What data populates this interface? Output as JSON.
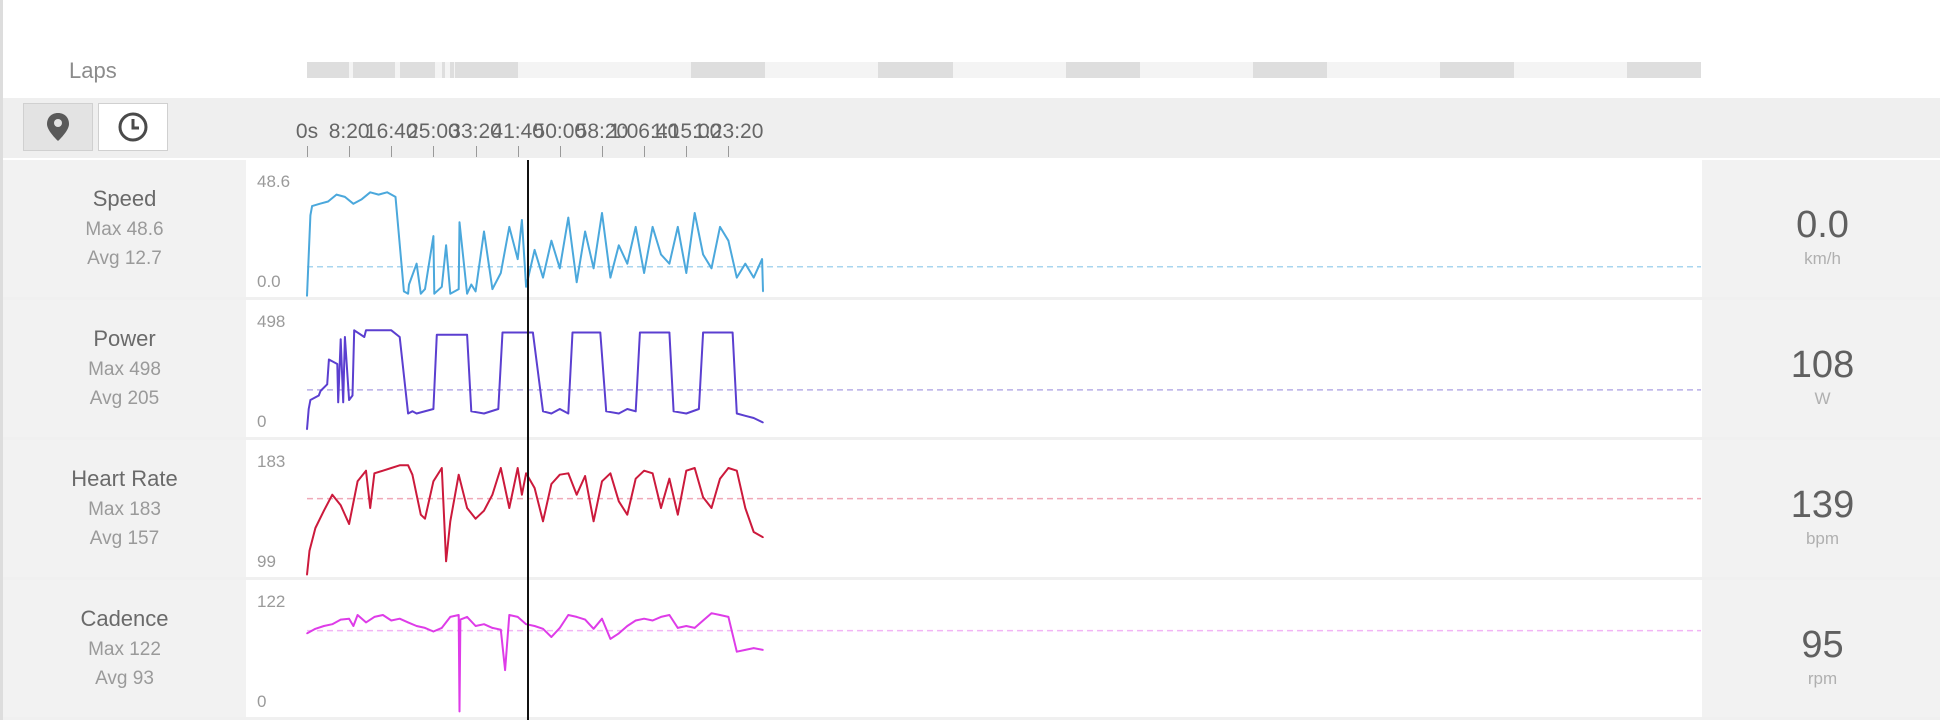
{
  "laps": {
    "label": "Laps",
    "segments": [
      [
        0,
        500
      ],
      [
        550,
        1050
      ],
      [
        1100,
        1520
      ],
      [
        1600,
        1640
      ],
      [
        1700,
        1740
      ],
      [
        1760,
        2500
      ],
      [
        4560,
        5440
      ],
      [
        6780,
        7660
      ],
      [
        9000,
        9880
      ],
      [
        11220,
        12100
      ],
      [
        13440,
        14320
      ],
      [
        15660,
        16540
      ]
    ]
  },
  "toolbar": {
    "buttons": [
      {
        "name": "map-pin",
        "active": false
      },
      {
        "name": "clock",
        "active": true
      }
    ]
  },
  "time_axis": {
    "max_seconds": 16540,
    "ticks": [
      {
        "label": "0s",
        "t": 0
      },
      {
        "label": "8:20",
        "t": 500
      },
      {
        "label": "16:40",
        "t": 1000
      },
      {
        "label": "25:00",
        "t": 1500
      },
      {
        "label": "33:20",
        "t": 2000
      },
      {
        "label": "41:40",
        "t": 2500
      },
      {
        "label": "50:00",
        "t": 3000
      },
      {
        "label": "58:20",
        "t": 3500
      },
      {
        "label": "1:06:40",
        "t": 4000
      },
      {
        "label": "1:15:00",
        "t": 4500
      },
      {
        "label": "1:23:20",
        "t": 5000
      }
    ],
    "cursor_seconds": 2610
  },
  "metrics": [
    {
      "key": "speed",
      "name": "Speed",
      "max_text": "Max 48.6",
      "avg_text": "Avg 12.7",
      "current": "0.0",
      "unit": "km/h",
      "ymax_label": "48.6",
      "ymin_label": "0.0",
      "ymin": 0,
      "ymax": 48.6,
      "avg": 12.7,
      "color": "#4ba8dc",
      "avg_color": "#a9d6ef"
    },
    {
      "key": "power",
      "name": "Power",
      "max_text": "Max 498",
      "avg_text": "Avg 205",
      "current": "108",
      "unit": "W",
      "ymax_label": "498",
      "ymin_label": "0",
      "ymin": 0,
      "ymax": 498,
      "avg": 205,
      "color": "#5b3fd0",
      "avg_color": "#b8aee6"
    },
    {
      "key": "hr",
      "name": "Heart Rate",
      "max_text": "Max 183",
      "avg_text": "Avg 157",
      "current": "139",
      "unit": "bpm",
      "ymax_label": "183",
      "ymin_label": "99",
      "ymin": 99,
      "ymax": 183,
      "avg": 157,
      "color": "#cc1a3c",
      "avg_color": "#efa9b8"
    },
    {
      "key": "cadence",
      "name": "Cadence",
      "max_text": "Max 122",
      "avg_text": "Avg 93",
      "current": "95",
      "unit": "rpm",
      "ymax_label": "122",
      "ymin_label": "0",
      "ymin": 0,
      "ymax": 122,
      "avg": 93,
      "color": "#de3ce8",
      "avg_color": "#f2b4f5"
    }
  ],
  "chart_data": [
    {
      "type": "line",
      "title": "Speed",
      "xlabel": "",
      "ylabel": "",
      "x_unit": "seconds",
      "ylim": [
        0,
        48.6
      ],
      "x": [
        0,
        40,
        60,
        150,
        250,
        350,
        450,
        550,
        650,
        750,
        850,
        950,
        1050,
        1150,
        1200,
        1210,
        1300,
        1350,
        1400,
        1500,
        1510,
        1600,
        1650,
        1700,
        1800,
        1810,
        1900,
        1950,
        2000,
        2100,
        2200,
        2300,
        2400,
        2500,
        2550,
        2600,
        2700,
        2800,
        2900,
        3000,
        3100,
        3200,
        3300,
        3400,
        3500,
        3600,
        3700,
        3800,
        3900,
        4000,
        4100,
        4200,
        4300,
        4400,
        4500,
        4600,
        4700,
        4800,
        4900,
        5000,
        5100,
        5200,
        5300,
        5400,
        5410
      ],
      "values": [
        0,
        35,
        39,
        40,
        41,
        44,
        43,
        40,
        42,
        45,
        44,
        45,
        43,
        2,
        1,
        5,
        14,
        1,
        3,
        26,
        1,
        4,
        22,
        1,
        3,
        32,
        1,
        5,
        2,
        28,
        3,
        10,
        30,
        16,
        33,
        4,
        20,
        8,
        24,
        12,
        34,
        6,
        28,
        12,
        36,
        8,
        22,
        14,
        30,
        10,
        30,
        18,
        14,
        30,
        10,
        36,
        18,
        12,
        30,
        24,
        8,
        14,
        8,
        16,
        2
      ]
    },
    {
      "type": "line",
      "title": "Power",
      "xlabel": "",
      "ylabel": "",
      "x_unit": "seconds",
      "ylim": [
        0,
        498
      ],
      "x": [
        0,
        20,
        40,
        140,
        160,
        240,
        260,
        360,
        370,
        400,
        430,
        450,
        500,
        540,
        560,
        680,
        700,
        1000,
        1100,
        1200,
        1250,
        1300,
        1500,
        1540,
        1900,
        1950,
        2100,
        2270,
        2320,
        2680,
        2800,
        2900,
        3000,
        3100,
        3150,
        3480,
        3550,
        3700,
        3800,
        3900,
        3950,
        4300,
        4350,
        4500,
        4650,
        4700,
        5050,
        5100,
        5200,
        5300,
        5410
      ],
      "values": [
        30,
        120,
        160,
        180,
        200,
        230,
        340,
        320,
        150,
        430,
        150,
        440,
        160,
        180,
        470,
        440,
        470,
        470,
        440,
        100,
        110,
        100,
        120,
        450,
        450,
        110,
        100,
        120,
        460,
        460,
        110,
        100,
        120,
        100,
        460,
        460,
        110,
        100,
        120,
        110,
        460,
        460,
        110,
        100,
        120,
        460,
        460,
        100,
        90,
        80,
        60
      ]
    },
    {
      "type": "line",
      "title": "Heart Rate",
      "xlabel": "",
      "ylabel": "",
      "x_unit": "seconds",
      "ylim": [
        99,
        183
      ],
      "x": [
        0,
        30,
        100,
        200,
        300,
        400,
        500,
        600,
        700,
        750,
        800,
        900,
        1000,
        1100,
        1200,
        1250,
        1300,
        1350,
        1400,
        1500,
        1600,
        1650,
        1700,
        1800,
        1900,
        2000,
        2100,
        2200,
        2300,
        2400,
        2500,
        2550,
        2600,
        2700,
        2800,
        2900,
        3000,
        3100,
        3200,
        3300,
        3400,
        3500,
        3600,
        3700,
        3800,
        3900,
        4000,
        4100,
        4200,
        4300,
        4400,
        4500,
        4600,
        4700,
        4800,
        4900,
        5000,
        5100,
        5200,
        5300,
        5410
      ],
      "values": [
        100,
        118,
        135,
        148,
        160,
        152,
        138,
        170,
        178,
        150,
        176,
        178,
        180,
        182,
        182,
        175,
        160,
        145,
        142,
        170,
        180,
        110,
        140,
        175,
        150,
        142,
        148,
        160,
        180,
        150,
        180,
        160,
        176,
        165,
        140,
        168,
        175,
        176,
        160,
        174,
        140,
        170,
        176,
        155,
        145,
        172,
        178,
        176,
        150,
        172,
        145,
        178,
        180,
        158,
        150,
        172,
        180,
        178,
        150,
        132,
        128
      ]
    },
    {
      "type": "line",
      "title": "Cadence",
      "xlabel": "",
      "ylabel": "",
      "x_unit": "seconds",
      "ylim": [
        0,
        122
      ],
      "x": [
        0,
        100,
        200,
        300,
        400,
        500,
        550,
        600,
        700,
        800,
        900,
        1000,
        1100,
        1200,
        1300,
        1400,
        1500,
        1600,
        1700,
        1800,
        1810,
        1820,
        1900,
        2000,
        2100,
        2200,
        2300,
        2350,
        2400,
        2500,
        2600,
        2700,
        2800,
        2900,
        3000,
        3100,
        3200,
        3300,
        3400,
        3500,
        3600,
        3700,
        3800,
        3900,
        4000,
        4100,
        4200,
        4300,
        4400,
        4500,
        4600,
        4700,
        4800,
        4900,
        5000,
        5100,
        5200,
        5300,
        5410
      ],
      "values": [
        90,
        95,
        98,
        100,
        105,
        106,
        98,
        110,
        102,
        108,
        110,
        104,
        106,
        102,
        98,
        96,
        92,
        96,
        108,
        110,
        5,
        105,
        108,
        98,
        100,
        96,
        94,
        50,
        110,
        108,
        100,
        98,
        95,
        86,
        96,
        110,
        108,
        105,
        95,
        106,
        84,
        90,
        98,
        104,
        106,
        104,
        108,
        110,
        96,
        98,
        96,
        104,
        112,
        110,
        108,
        70,
        72,
        74,
        72
      ]
    }
  ]
}
